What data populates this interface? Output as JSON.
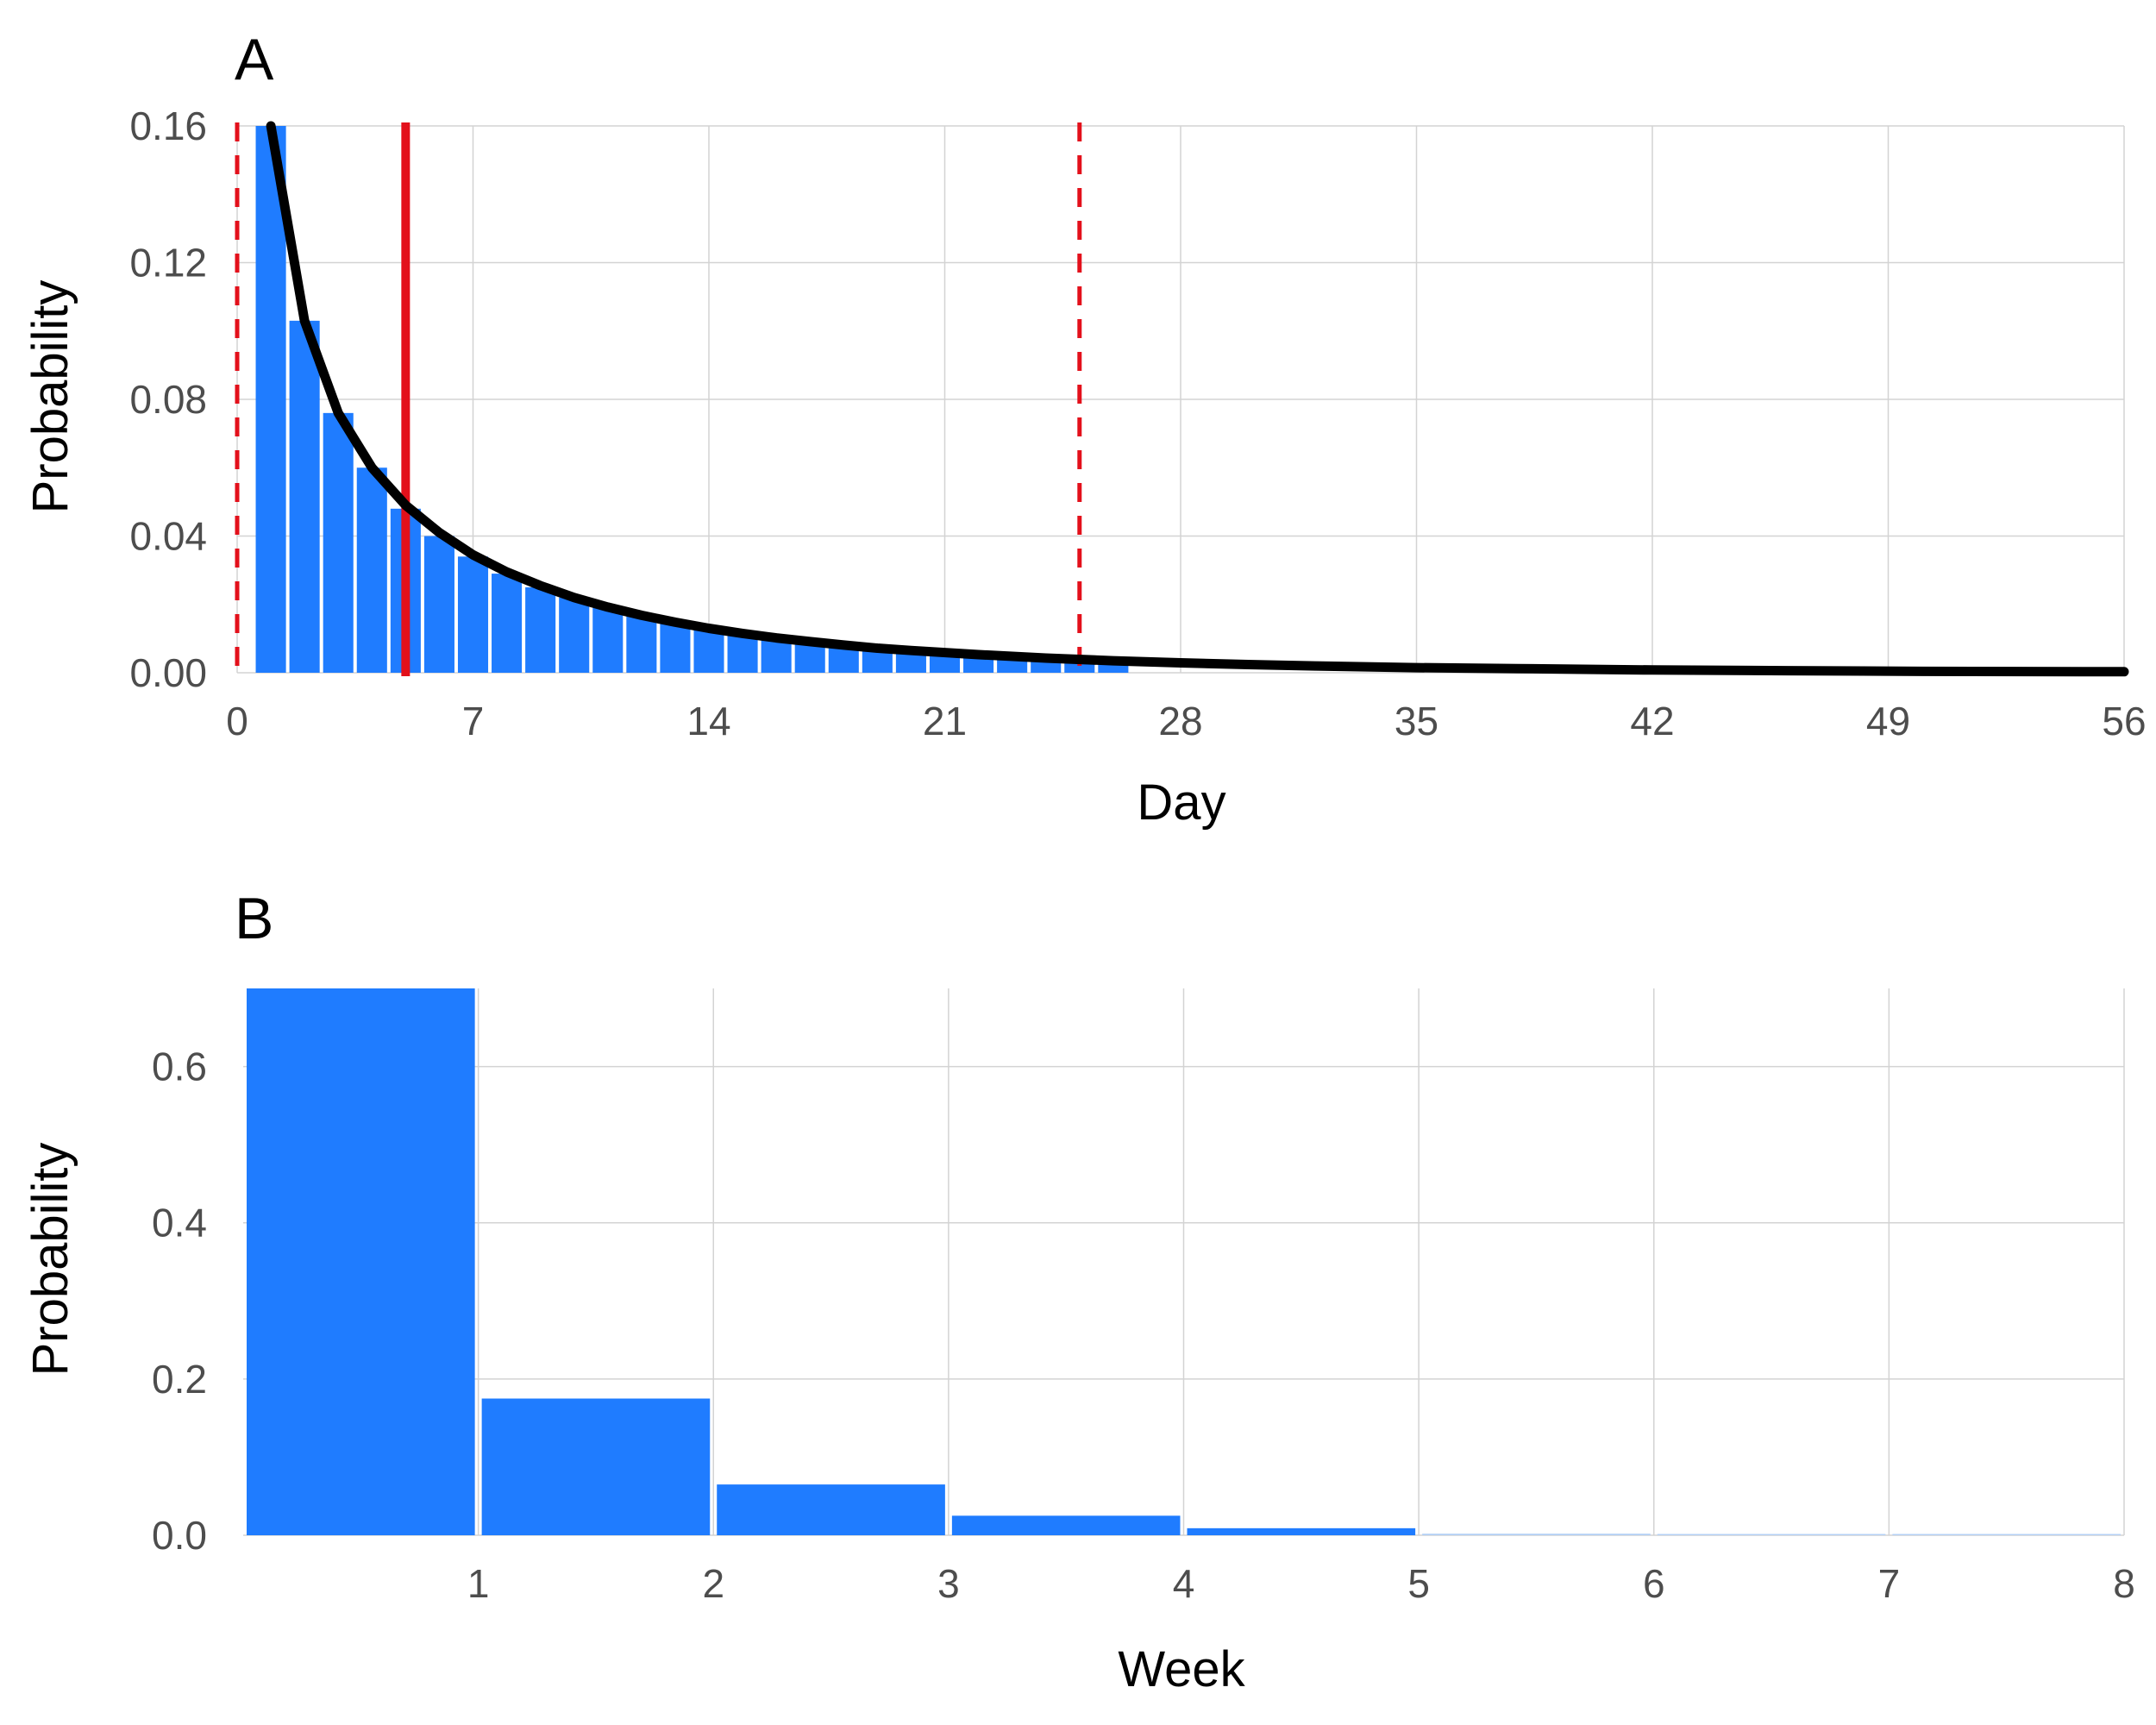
{
  "colors": {
    "bar": "#1f7cff",
    "bar_faint": "#b4d0f5",
    "fit_line": "#000000",
    "reference_lines": "#e3101b",
    "grid": "#d3d3d3",
    "tick_text": "#4d4d4d"
  },
  "chart_data": [
    {
      "panel_label": "A",
      "type": "bar",
      "title": "",
      "xlabel": "Day",
      "ylabel": "Probability",
      "xlim": [
        0,
        56
      ],
      "ylim": [
        0,
        0.16
      ],
      "xticks": [
        "0",
        "7",
        "14",
        "21",
        "28",
        "35",
        "42",
        "49",
        "56"
      ],
      "yticks": [
        "0.00",
        "0.04",
        "0.08",
        "0.12",
        "0.16"
      ],
      "grid": true,
      "legend": "none",
      "series": [
        {
          "kind": "bar",
          "x": [
            1,
            2,
            3,
            4,
            5,
            6,
            7,
            8,
            9,
            10,
            11,
            12,
            13,
            14,
            15,
            16,
            17,
            18,
            19,
            20,
            21,
            22,
            23,
            24,
            25,
            26
          ],
          "values": [
            0.16,
            0.103,
            0.076,
            0.06,
            0.048,
            0.04,
            0.034,
            0.029,
            0.025,
            0.022,
            0.019,
            0.0165,
            0.0145,
            0.0128,
            0.0112,
            0.0099,
            0.0088,
            0.0078,
            0.0069,
            0.0062,
            0.0056,
            0.005,
            0.0045,
            0.004,
            0.0036,
            0.0033
          ]
        },
        {
          "kind": "line",
          "x": [
            1,
            2,
            3,
            4,
            5,
            6,
            7,
            8,
            9,
            10,
            11,
            12,
            13,
            14,
            15,
            16,
            17,
            18,
            19,
            20,
            22,
            24,
            26,
            28,
            30,
            32,
            35,
            38,
            42,
            46,
            50,
            56
          ],
          "values": [
            0.16,
            0.103,
            0.076,
            0.06,
            0.049,
            0.041,
            0.0345,
            0.0295,
            0.0255,
            0.022,
            0.0192,
            0.0168,
            0.0148,
            0.013,
            0.0115,
            0.0102,
            0.0091,
            0.0081,
            0.0072,
            0.0065,
            0.0053,
            0.0043,
            0.0035,
            0.0029,
            0.0024,
            0.002,
            0.0015,
            0.0012,
            0.0008,
            0.0006,
            0.0004,
            0.0003
          ]
        }
      ],
      "reference_lines": [
        {
          "x": 5,
          "style": "solid"
        },
        {
          "x": 0,
          "style": "dashed"
        },
        {
          "x": 25,
          "style": "dashed"
        }
      ]
    },
    {
      "panel_label": "B",
      "type": "bar",
      "title": "",
      "xlabel": "Week",
      "ylabel": "Probability",
      "xlim": [
        0,
        8
      ],
      "ylim": [
        0,
        0.7
      ],
      "xticks": [
        "1",
        "2",
        "3",
        "4",
        "5",
        "6",
        "7",
        "8"
      ],
      "yticks": [
        "0.0",
        "0.2",
        "0.4",
        "0.6"
      ],
      "grid": true,
      "legend": "none",
      "categories": [
        "0-1",
        "1-2",
        "2-3",
        "3-4",
        "4-5",
        "5-6",
        "6-7",
        "7-8"
      ],
      "values": [
        0.7,
        0.175,
        0.065,
        0.025,
        0.009,
        0.002,
        0.0005,
        0.0002
      ]
    }
  ]
}
